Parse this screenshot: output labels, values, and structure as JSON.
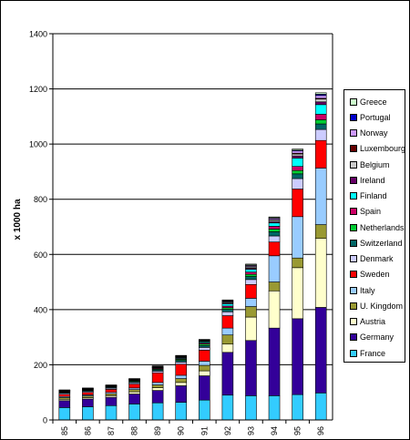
{
  "chart_data": {
    "type": "bar",
    "stacked": true,
    "ylabel": "x 1000 ha",
    "ylim": [
      0,
      1400
    ],
    "yticks": [
      0,
      200,
      400,
      600,
      800,
      1000,
      1200,
      1400
    ],
    "grid": true,
    "legend_position": "right",
    "categories": [
      "85",
      "86",
      "87",
      "88",
      "89",
      "90",
      "91",
      "92",
      "93",
      "94",
      "95",
      "96"
    ],
    "series": [
      {
        "name": "France",
        "color": "#33CCFF",
        "values": [
          45,
          48,
          52,
          58,
          62,
          64,
          72,
          90,
          88,
          88,
          92,
          98
        ]
      },
      {
        "name": "Germany",
        "color": "#330099",
        "values": [
          25,
          28,
          30,
          36,
          45,
          60,
          88,
          155,
          200,
          245,
          275,
          310
        ]
      },
      {
        "name": "Austria",
        "color": "#FFFFCC",
        "values": [
          5,
          5,
          6,
          8,
          10,
          12,
          18,
          30,
          85,
          135,
          185,
          250
        ]
      },
      {
        "name": "U. Kingdom",
        "color": "#999933",
        "values": [
          6,
          6,
          7,
          8,
          10,
          14,
          20,
          33,
          38,
          32,
          35,
          50
        ]
      },
      {
        "name": "Italy",
        "color": "#99CCFF",
        "values": [
          4,
          4,
          5,
          6,
          9,
          12,
          15,
          25,
          30,
          95,
          150,
          205
        ]
      },
      {
        "name": "Sweden",
        "color": "#FF0000",
        "values": [
          8,
          9,
          11,
          14,
          35,
          40,
          40,
          45,
          50,
          50,
          100,
          100
        ]
      },
      {
        "name": "Denmark",
        "color": "#CCCCFF",
        "values": [
          4,
          4,
          4,
          5,
          6,
          8,
          10,
          14,
          18,
          22,
          38,
          40
        ]
      },
      {
        "name": "Switzerland",
        "color": "#006666",
        "values": [
          3,
          3,
          3,
          4,
          5,
          6,
          7,
          9,
          11,
          15,
          17,
          20
        ]
      },
      {
        "name": "Netherlands",
        "color": "#00CC33",
        "values": [
          2,
          2,
          2,
          3,
          3,
          4,
          5,
          6,
          8,
          10,
          12,
          15
        ]
      },
      {
        "name": "Spain",
        "color": "#CC0066",
        "values": [
          2,
          2,
          2,
          2,
          3,
          3,
          4,
          6,
          8,
          10,
          15,
          20
        ]
      },
      {
        "name": "Finland",
        "color": "#00FFFF",
        "values": [
          1,
          1,
          1,
          2,
          2,
          3,
          4,
          8,
          10,
          12,
          30,
          35
        ]
      },
      {
        "name": "Ireland",
        "color": "#660066",
        "values": [
          1,
          1,
          1,
          1,
          1,
          1,
          2,
          3,
          4,
          5,
          8,
          10
        ]
      },
      {
        "name": "Belgium",
        "color": "#CCCCCC",
        "values": [
          1,
          1,
          1,
          1,
          1,
          2,
          2,
          3,
          4,
          5,
          7,
          10
        ]
      },
      {
        "name": "Luxembourg",
        "color": "#660000",
        "values": [
          1,
          1,
          1,
          1,
          1,
          1,
          1,
          1,
          2,
          2,
          3,
          3
        ]
      },
      {
        "name": "Norway",
        "color": "#CC99FF",
        "values": [
          1,
          1,
          1,
          1,
          1,
          2,
          2,
          3,
          4,
          5,
          8,
          10
        ]
      },
      {
        "name": "Portugal",
        "color": "#0000CC",
        "values": [
          0,
          0,
          0,
          0,
          1,
          1,
          1,
          2,
          2,
          2,
          3,
          5
        ]
      },
      {
        "name": "Greece",
        "color": "#CCFFCC",
        "values": [
          0,
          0,
          0,
          0,
          1,
          1,
          1,
          2,
          3,
          3,
          4,
          5
        ]
      }
    ]
  }
}
